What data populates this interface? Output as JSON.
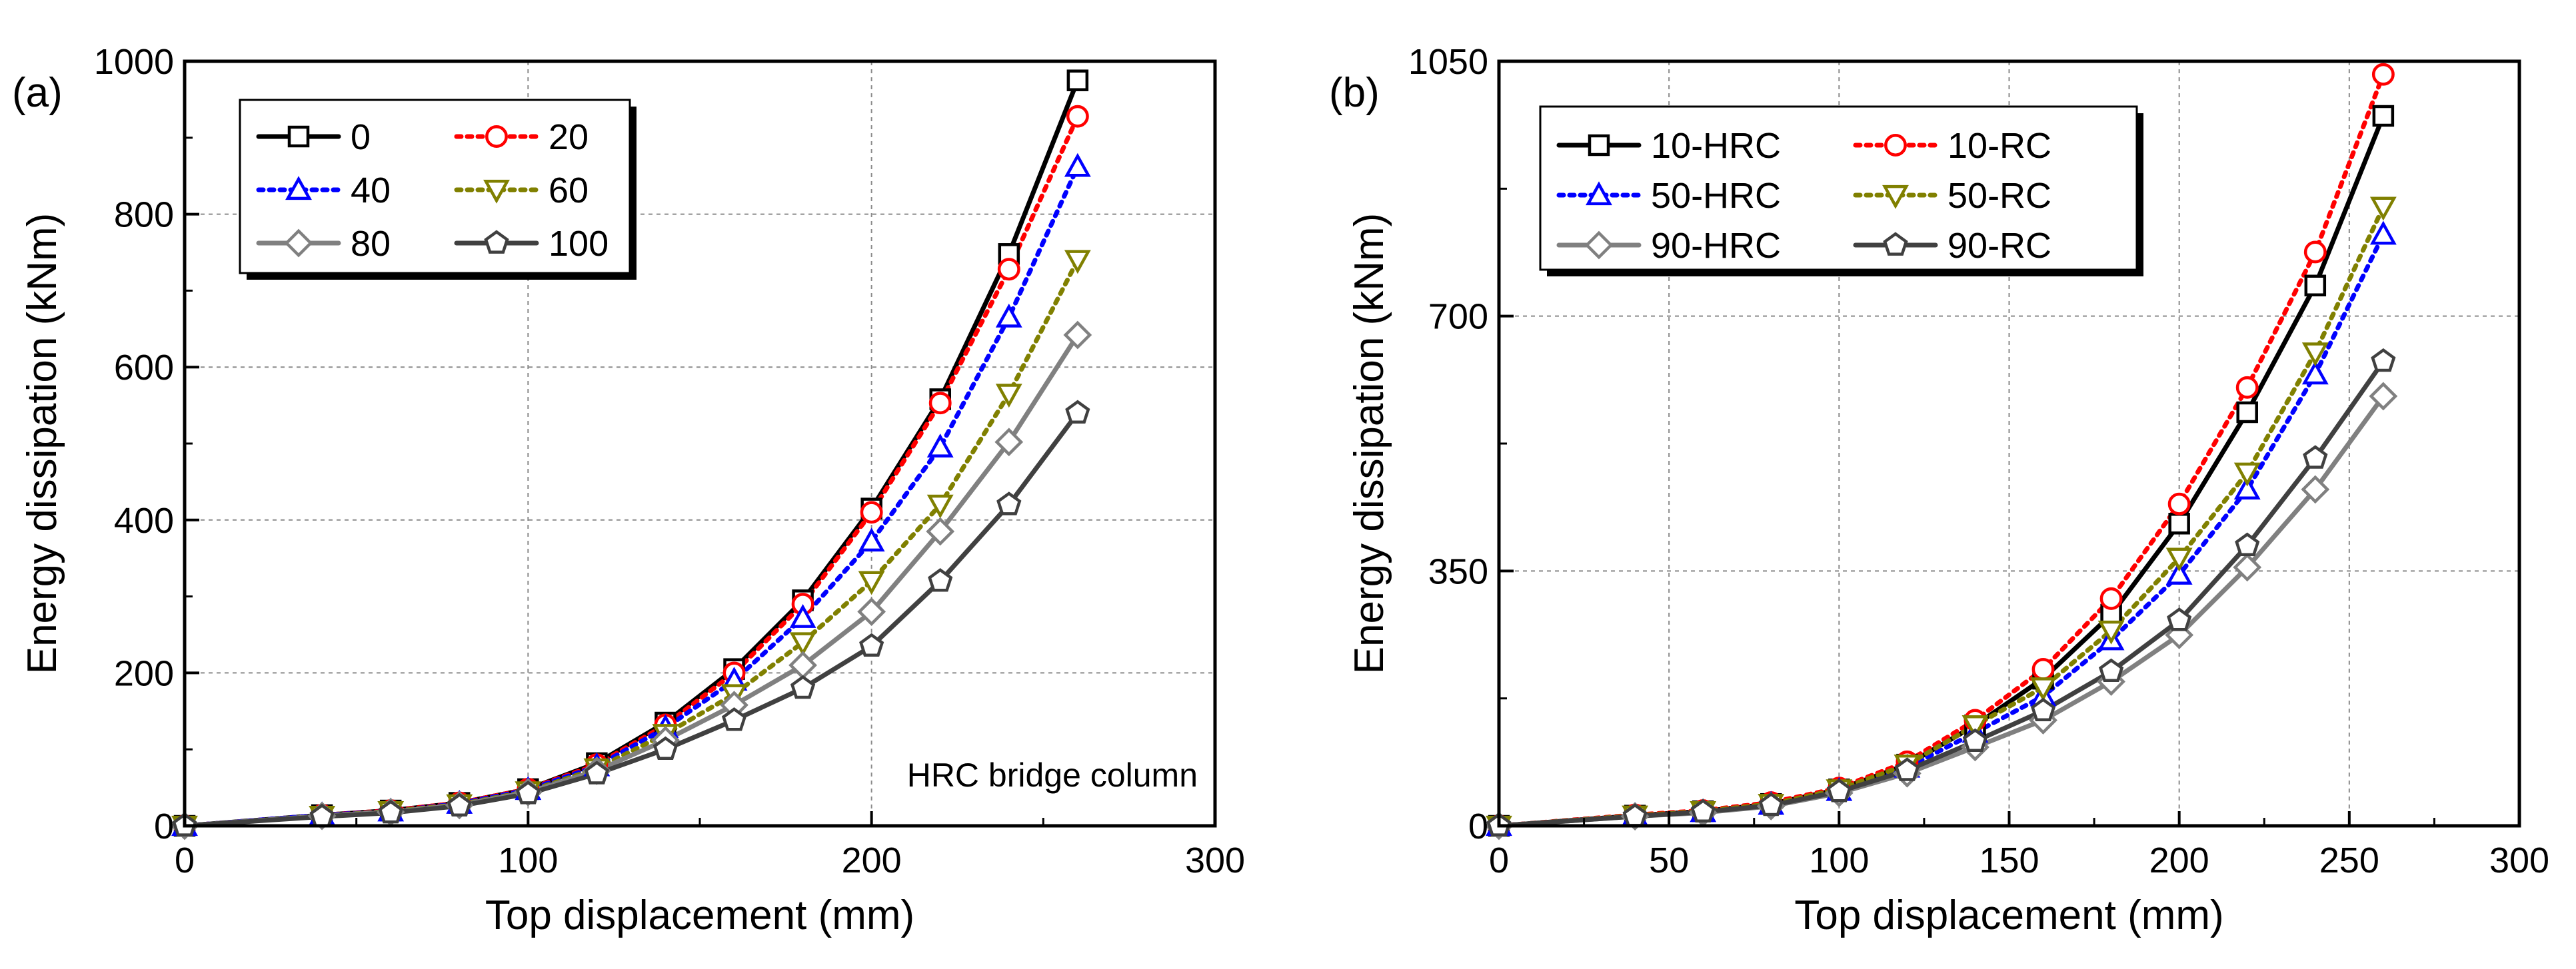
{
  "chart_data": [
    {
      "type": "line",
      "panel_label": "(a)",
      "xlabel": "Top displacement (mm)",
      "ylabel": "Energy dissipation (kNm)",
      "xlim": [
        0,
        300
      ],
      "ylim": [
        0,
        1000
      ],
      "xticks": [
        "0",
        "100",
        "200",
        "300"
      ],
      "yticks": [
        "0",
        "200",
        "400",
        "600",
        "800",
        "1000"
      ],
      "grid": true,
      "legend_position": "top-left",
      "annotation": "HRC bridge column",
      "x": [
        0,
        40,
        60,
        80,
        100,
        120,
        140,
        160,
        180,
        200,
        220,
        240,
        260
      ],
      "series": [
        {
          "name": "0",
          "color": "#000000",
          "dash": "solid",
          "marker": "square",
          "values": [
            0,
            14,
            20,
            30,
            48,
            82,
            135,
            205,
            295,
            415,
            558,
            748,
            975
          ]
        },
        {
          "name": "20",
          "color": "#ff0000",
          "dash": "dotted",
          "marker": "circle",
          "values": [
            0,
            14,
            20,
            30,
            48,
            80,
            132,
            200,
            290,
            410,
            553,
            728,
            928
          ]
        },
        {
          "name": "40",
          "color": "#0000ff",
          "dash": "dotted",
          "marker": "triangle-up",
          "values": [
            0,
            14,
            19,
            29,
            47,
            78,
            128,
            190,
            272,
            372,
            495,
            665,
            862
          ]
        },
        {
          "name": "60",
          "color": "#808000",
          "dash": "dotted",
          "marker": "triangle-down",
          "values": [
            0,
            13,
            19,
            28,
            45,
            75,
            120,
            172,
            240,
            320,
            420,
            565,
            740
          ]
        },
        {
          "name": "80",
          "color": "#808080",
          "dash": "solid",
          "marker": "diamond",
          "values": [
            0,
            13,
            18,
            27,
            44,
            72,
            112,
            158,
            210,
            280,
            385,
            502,
            642
          ]
        },
        {
          "name": "100",
          "color": "#404040",
          "dash": "solid",
          "marker": "pentagon",
          "values": [
            0,
            12,
            17,
            26,
            42,
            68,
            100,
            138,
            180,
            235,
            320,
            420,
            540
          ]
        }
      ]
    },
    {
      "type": "line",
      "panel_label": "(b)",
      "xlabel": "Top displacement (mm)",
      "ylabel": "Energy dissipation (kNm)",
      "xlim": [
        0,
        300
      ],
      "ylim": [
        0,
        1050
      ],
      "xticks": [
        "0",
        "50",
        "100",
        "150",
        "200",
        "250",
        "300"
      ],
      "yticks": [
        "0",
        "350",
        "700",
        "1050"
      ],
      "grid": true,
      "legend_position": "top-left",
      "x": [
        0,
        40,
        60,
        80,
        100,
        120,
        140,
        160,
        180,
        200,
        220,
        240,
        260
      ],
      "series": [
        {
          "name": "10-HRC",
          "color": "#000000",
          "dash": "solid",
          "marker": "square",
          "values": [
            0,
            14,
            20,
            30,
            50,
            84,
            138,
            202,
            290,
            415,
            568,
            742,
            975
          ]
        },
        {
          "name": "10-RC",
          "color": "#ff0000",
          "dash": "dotted",
          "marker": "circle",
          "values": [
            0,
            15,
            21,
            32,
            52,
            88,
            145,
            215,
            312,
            442,
            602,
            788,
            1032
          ]
        },
        {
          "name": "50-HRC",
          "color": "#0000ff",
          "dash": "dotted",
          "marker": "triangle-up",
          "values": [
            0,
            14,
            19,
            29,
            48,
            80,
            128,
            178,
            255,
            345,
            462,
            620,
            812
          ]
        },
        {
          "name": "50-RC",
          "color": "#808000",
          "dash": "dotted",
          "marker": "triangle-down",
          "values": [
            0,
            14,
            20,
            30,
            50,
            84,
            138,
            190,
            268,
            368,
            485,
            650,
            850
          ]
        },
        {
          "name": "90-HRC",
          "color": "#808080",
          "dash": "solid",
          "marker": "diamond",
          "values": [
            0,
            13,
            18,
            27,
            45,
            72,
            108,
            145,
            198,
            262,
            355,
            462,
            590
          ]
        },
        {
          "name": "90-RC",
          "color": "#404040",
          "dash": "solid",
          "marker": "pentagon",
          "values": [
            0,
            13,
            19,
            28,
            47,
            76,
            116,
            158,
            212,
            282,
            385,
            505,
            638
          ]
        }
      ]
    }
  ]
}
